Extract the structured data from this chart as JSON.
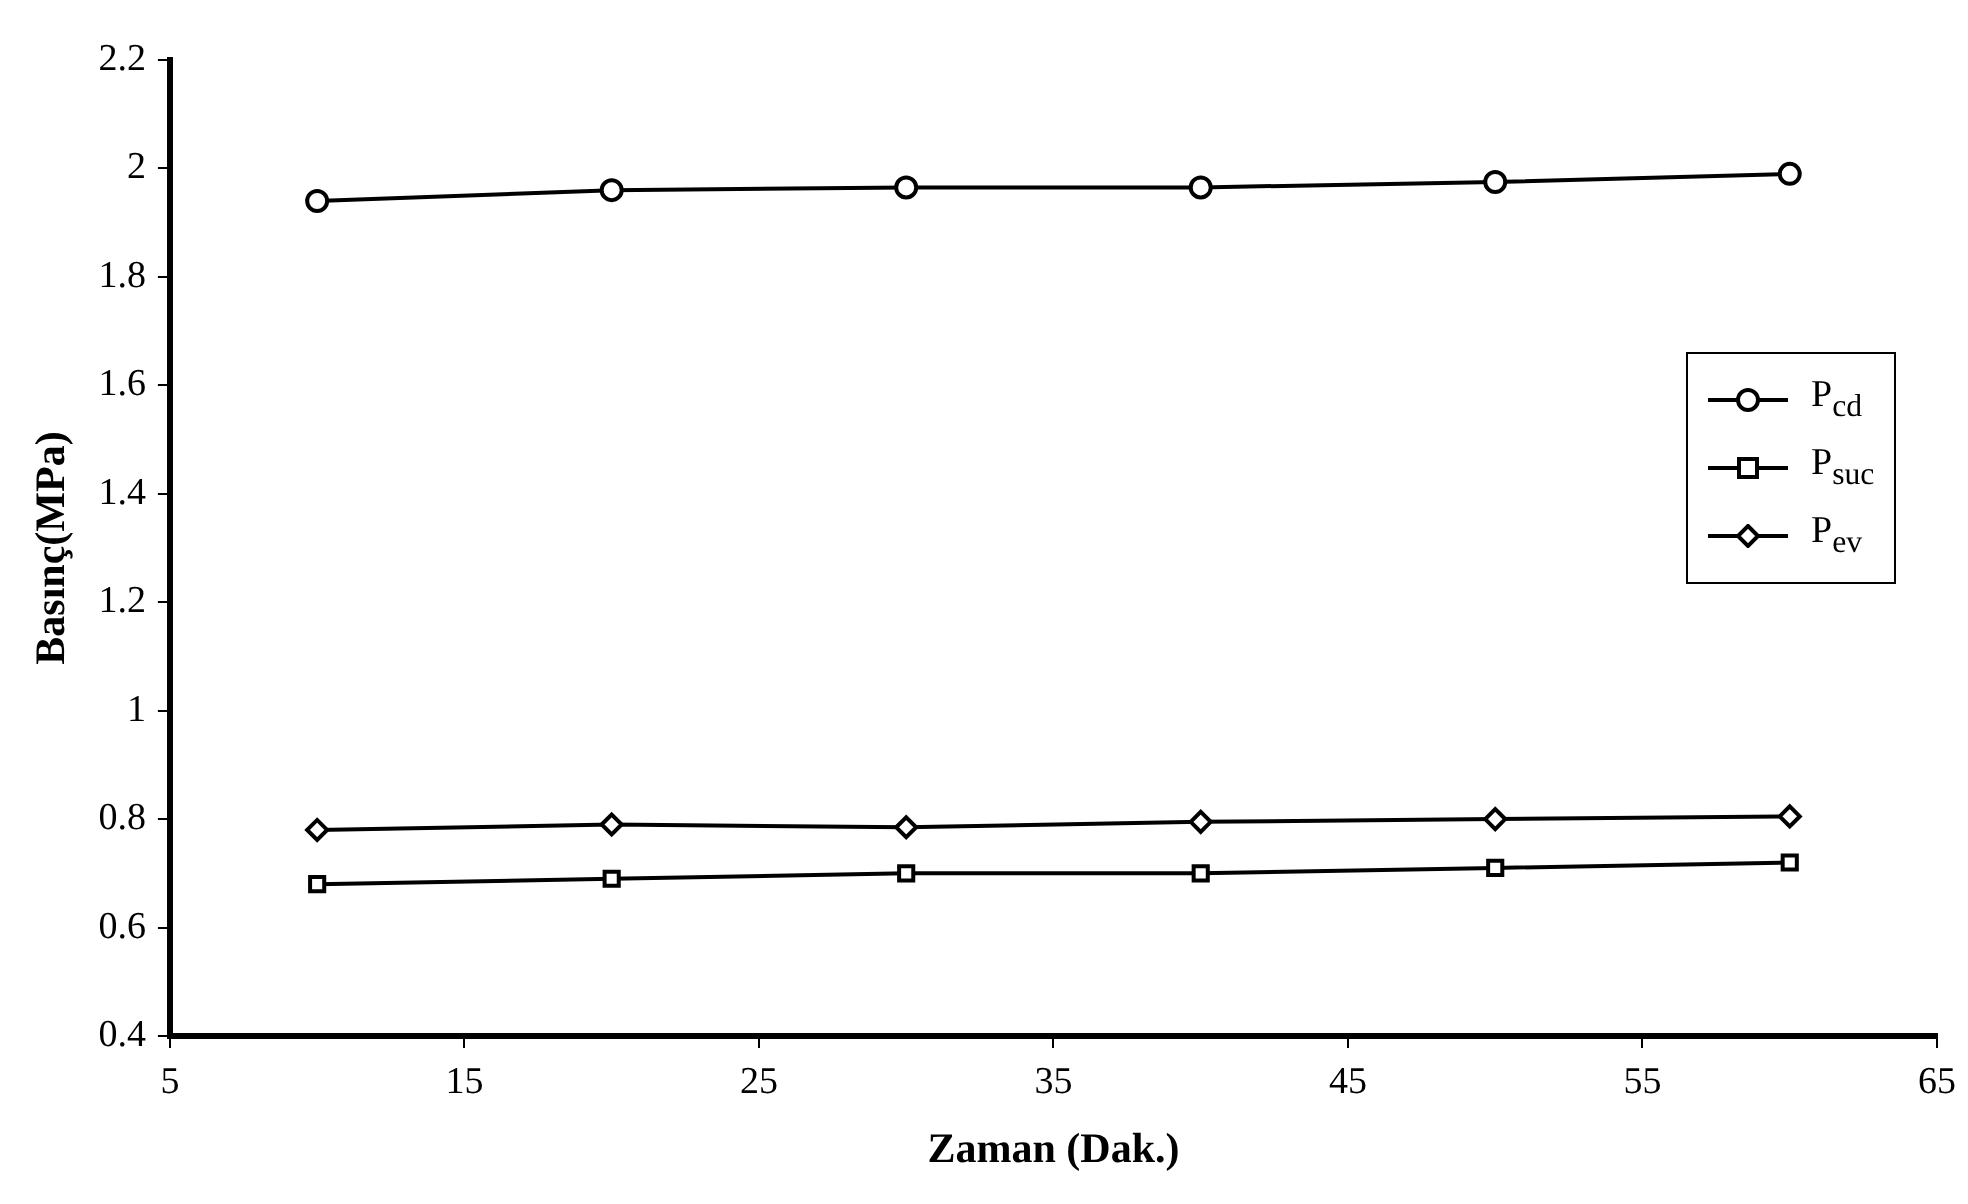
{
  "chart_data": {
    "type": "line",
    "xlabel": "Zaman (Dak.)",
    "ylabel": "Basınç(MPa)",
    "x": [
      10,
      20,
      30,
      40,
      50,
      60
    ],
    "series": [
      {
        "name": "P$_{cd}$",
        "color": "#000000",
        "marker": "circle",
        "values": [
          1.94,
          1.96,
          1.965,
          1.965,
          1.975,
          1.99
        ]
      },
      {
        "name": "P$_{suc}$",
        "color": "#000000",
        "marker": "square",
        "values": [
          0.68,
          0.69,
          0.7,
          0.7,
          0.71,
          0.72
        ]
      },
      {
        "name": "P$_{ev}$",
        "color": "#000000",
        "marker": "diamond",
        "values": [
          0.78,
          0.79,
          0.785,
          0.795,
          0.8,
          0.805
        ]
      }
    ],
    "xlim": [
      5,
      65
    ],
    "xticks": [
      5,
      15,
      25,
      35,
      45,
      55,
      65
    ],
    "ylim": [
      0.4,
      2.2
    ],
    "yticks": [
      0.4,
      0.6,
      0.8,
      1,
      1.2,
      1.4,
      1.6,
      1.8,
      2,
      2.2
    ],
    "grid": false,
    "legend": "right",
    "line_style": "solid"
  }
}
